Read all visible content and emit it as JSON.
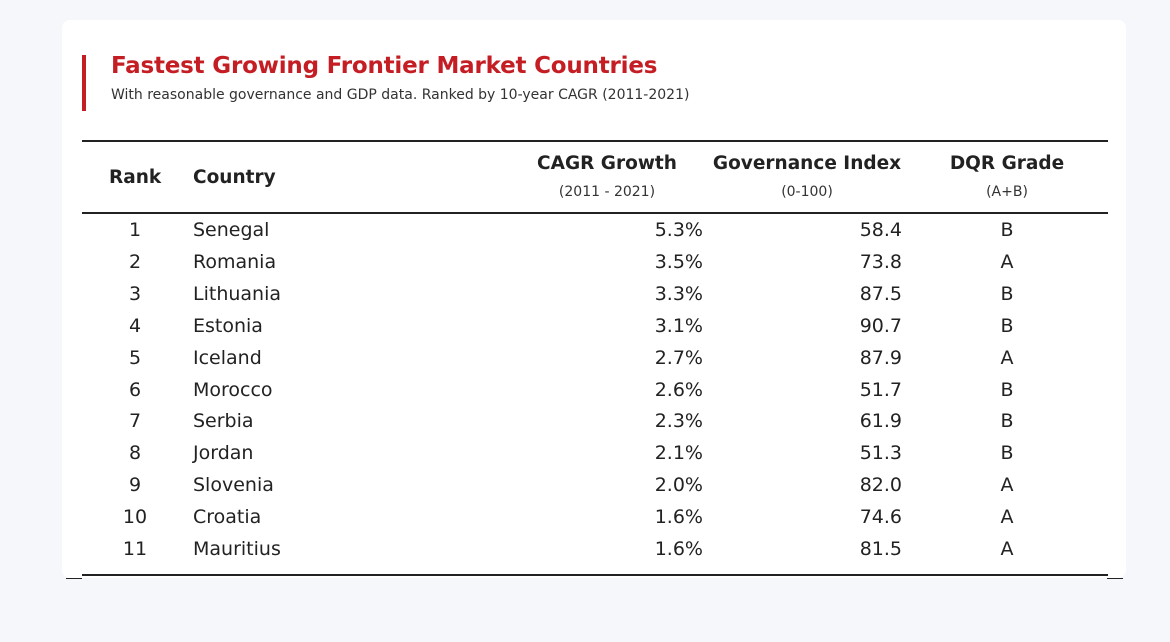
{
  "chart_data": {
    "type": "table",
    "title": "Fastest Growing Frontier Market Countries",
    "subtitle": "With reasonable governance and GDP data. Ranked by 10-year CAGR (2011-2021)",
    "columns": [
      {
        "key": "rank",
        "label": "Rank",
        "sub": ""
      },
      {
        "key": "country",
        "label": "Country",
        "sub": ""
      },
      {
        "key": "cagr",
        "label": "CAGR Growth",
        "sub": "(2011 - 2021)"
      },
      {
        "key": "gov",
        "label": "Governance Index",
        "sub": "(0-100)"
      },
      {
        "key": "dqr",
        "label": "DQR Grade",
        "sub": "(A+B)"
      }
    ],
    "rows": [
      {
        "rank": "1",
        "country": "Senegal",
        "cagr": "5.3%",
        "gov": "58.4",
        "dqr": "B"
      },
      {
        "rank": "2",
        "country": "Romania",
        "cagr": "3.5%",
        "gov": "73.8",
        "dqr": "A"
      },
      {
        "rank": "3",
        "country": "Lithuania",
        "cagr": "3.3%",
        "gov": "87.5",
        "dqr": "B"
      },
      {
        "rank": "4",
        "country": "Estonia",
        "cagr": "3.1%",
        "gov": "90.7",
        "dqr": "B"
      },
      {
        "rank": "5",
        "country": "Iceland",
        "cagr": "2.7%",
        "gov": "87.9",
        "dqr": "A"
      },
      {
        "rank": "6",
        "country": "Morocco",
        "cagr": "2.6%",
        "gov": "51.7",
        "dqr": "B"
      },
      {
        "rank": "7",
        "country": "Serbia",
        "cagr": "2.3%",
        "gov": "61.9",
        "dqr": "B"
      },
      {
        "rank": "8",
        "country": "Jordan",
        "cagr": "2.1%",
        "gov": "51.3",
        "dqr": "B"
      },
      {
        "rank": "9",
        "country": "Slovenia",
        "cagr": "2.0%",
        "gov": "82.0",
        "dqr": "A"
      },
      {
        "rank": "10",
        "country": "Croatia",
        "cagr": "1.6%",
        "gov": "74.6",
        "dqr": "A"
      },
      {
        "rank": "11",
        "country": "Mauritius",
        "cagr": "1.6%",
        "gov": "81.5",
        "dqr": "A"
      }
    ]
  },
  "colors": {
    "accent": "#c41e24",
    "background": "#f5f7fa",
    "card": "#ffffff",
    "text": "#222222"
  }
}
